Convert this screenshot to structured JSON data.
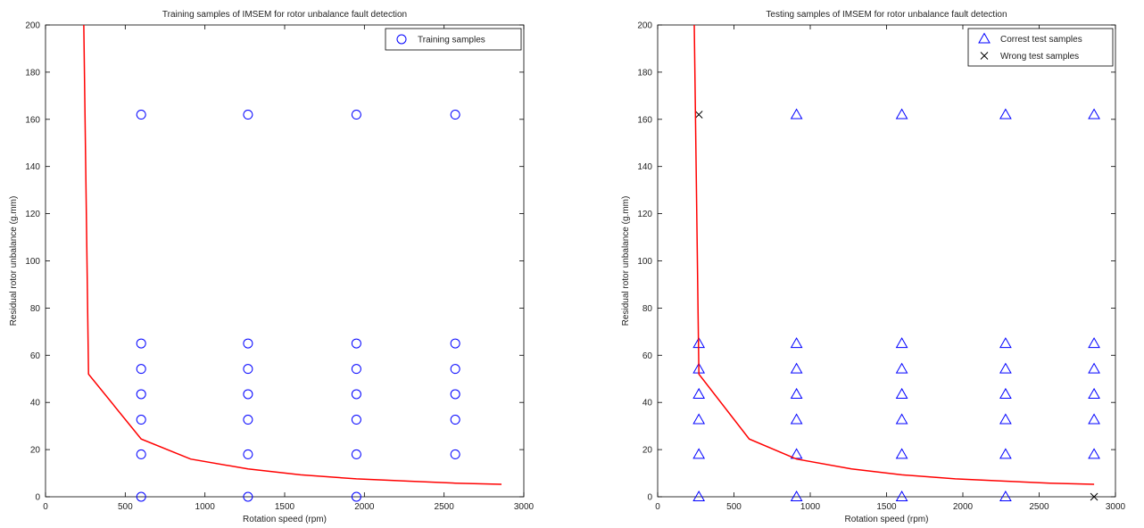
{
  "chart_data": [
    {
      "type": "scatter",
      "title": "Training samples of IMSEM for rotor unbalance fault detection",
      "xlabel": "Rotation speed (rpm)",
      "ylabel": "Residual rotor unbalance (g.mm)",
      "xlim": [
        0,
        3000
      ],
      "ylim": [
        0,
        200
      ],
      "xticks": [
        0,
        500,
        1000,
        1500,
        2000,
        2500,
        3000
      ],
      "yticks": [
        0,
        20,
        40,
        60,
        80,
        100,
        120,
        140,
        160,
        180,
        200
      ],
      "grid": false,
      "legend_position": "top-right",
      "series": [
        {
          "name": "Training samples",
          "marker": "circle",
          "color": "#0000ff",
          "points": [
            [
              600,
              0
            ],
            [
              600,
              18
            ],
            [
              600,
              32.7
            ],
            [
              600,
              43.5
            ],
            [
              600,
              54.2
            ],
            [
              600,
              65
            ],
            [
              600,
              162
            ],
            [
              1270,
              0
            ],
            [
              1270,
              18
            ],
            [
              1270,
              32.7
            ],
            [
              1270,
              43.5
            ],
            [
              1270,
              54.2
            ],
            [
              1270,
              65
            ],
            [
              1270,
              162
            ],
            [
              1950,
              0
            ],
            [
              1950,
              18
            ],
            [
              1950,
              32.7
            ],
            [
              1950,
              43.5
            ],
            [
              1950,
              54.2
            ],
            [
              1950,
              65
            ],
            [
              1950,
              162
            ],
            [
              2570,
              18
            ],
            [
              2570,
              32.7
            ],
            [
              2570,
              43.5
            ],
            [
              2570,
              54.2
            ],
            [
              2570,
              65
            ],
            [
              2570,
              162
            ]
          ]
        },
        {
          "marker": "line",
          "color": "#ff0000",
          "points": [
            [
              240,
              200
            ],
            [
              270,
              52
            ],
            [
              600,
              24.5
            ],
            [
              910,
              16
            ],
            [
              1270,
              11.8
            ],
            [
              1600,
              9.3
            ],
            [
              1950,
              7.6
            ],
            [
              2280,
              6.6
            ],
            [
              2570,
              5.8
            ],
            [
              2860,
              5.3
            ]
          ]
        }
      ]
    },
    {
      "type": "scatter",
      "title": "Testing samples of IMSEM for rotor unbalance fault detection",
      "xlabel": "Rotation speed (rpm)",
      "ylabel": "Residual rotor unbalance (g.mm)",
      "xlim": [
        0,
        3000
      ],
      "ylim": [
        0,
        200
      ],
      "xticks": [
        0,
        500,
        1000,
        1500,
        2000,
        2500,
        3000
      ],
      "yticks": [
        0,
        20,
        40,
        60,
        80,
        100,
        120,
        140,
        160,
        180,
        200
      ],
      "grid": false,
      "legend_position": "top-right",
      "series": [
        {
          "name": "Correst test samples",
          "marker": "triangle",
          "color": "#0000ff",
          "points": [
            [
              270,
              0
            ],
            [
              270,
              18
            ],
            [
              270,
              32.7
            ],
            [
              270,
              43.5
            ],
            [
              270,
              54.2
            ],
            [
              270,
              65
            ],
            [
              910,
              0
            ],
            [
              910,
              18
            ],
            [
              910,
              32.7
            ],
            [
              910,
              43.5
            ],
            [
              910,
              54.2
            ],
            [
              910,
              65
            ],
            [
              910,
              162
            ],
            [
              1600,
              0
            ],
            [
              1600,
              18
            ],
            [
              1600,
              32.7
            ],
            [
              1600,
              43.5
            ],
            [
              1600,
              54.2
            ],
            [
              1600,
              65
            ],
            [
              1600,
              162
            ],
            [
              2280,
              0
            ],
            [
              2280,
              18
            ],
            [
              2280,
              32.7
            ],
            [
              2280,
              43.5
            ],
            [
              2280,
              54.2
            ],
            [
              2280,
              65
            ],
            [
              2280,
              162
            ],
            [
              2860,
              18
            ],
            [
              2860,
              32.7
            ],
            [
              2860,
              43.5
            ],
            [
              2860,
              54.2
            ],
            [
              2860,
              65
            ],
            [
              2860,
              162
            ]
          ]
        },
        {
          "name": "Wrong test samples",
          "marker": "x",
          "color": "#000000",
          "points": [
            [
              270,
              162
            ],
            [
              2860,
              0
            ]
          ]
        },
        {
          "marker": "line",
          "color": "#ff0000",
          "points": [
            [
              240,
              200
            ],
            [
              270,
              52
            ],
            [
              600,
              24.5
            ],
            [
              910,
              16
            ],
            [
              1270,
              11.8
            ],
            [
              1600,
              9.3
            ],
            [
              1950,
              7.6
            ],
            [
              2280,
              6.6
            ],
            [
              2570,
              5.8
            ],
            [
              2860,
              5.3
            ]
          ]
        }
      ]
    }
  ]
}
